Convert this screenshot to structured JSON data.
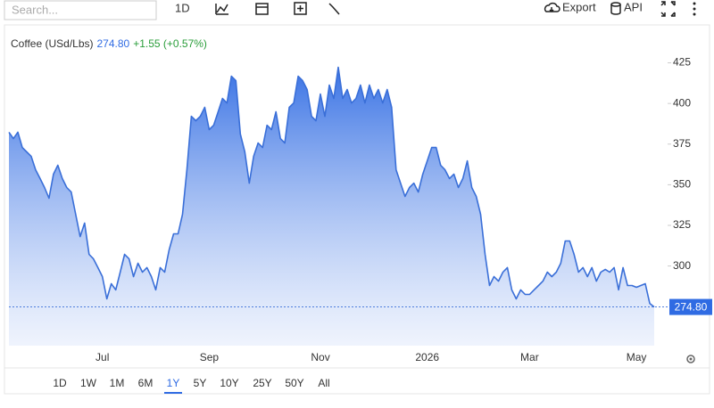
{
  "toolbar": {
    "search_placeholder": "Search...",
    "interval": "1D",
    "export": "Export",
    "api": "API"
  },
  "header": {
    "name": "Coffee (USd/Lbs)",
    "change": "+1.55 (+0.57%)"
  },
  "ranges": [
    "1D",
    "1W",
    "1M",
    "6M",
    "1Y",
    "5Y",
    "10Y",
    "25Y",
    "50Y",
    "All"
  ],
  "active_range": 4,
  "chart_data": {
    "type": "area",
    "color": "#3a6fd8",
    "categories": [
      null,
      null,
      null,
      null,
      null,
      null,
      null,
      null,
      null,
      null,
      null,
      null,
      null,
      null,
      null,
      null,
      null,
      null,
      null,
      null,
      null,
      "Jul",
      null,
      null,
      null,
      null,
      null,
      null,
      null,
      null,
      null,
      null,
      null,
      null,
      null,
      null,
      null,
      null,
      null,
      null,
      null,
      null,
      null,
      null,
      null,
      "Sep",
      null,
      null,
      null,
      null,
      null,
      null,
      null,
      null,
      null,
      null,
      null,
      null,
      null,
      null,
      null,
      null,
      null,
      null,
      null,
      null,
      null,
      null,
      null,
      null,
      "Nov",
      null,
      null,
      null,
      null,
      null,
      null,
      null,
      null,
      null,
      null,
      null,
      null,
      null,
      null,
      null,
      null,
      null,
      null,
      null,
      null,
      null,
      null,
      null,
      "2026",
      null,
      null,
      null,
      null,
      null,
      null,
      null,
      null,
      null,
      null,
      null,
      null,
      null,
      null,
      null,
      null,
      null,
      null,
      null,
      null,
      null,
      null,
      "Mar",
      null,
      null,
      null,
      null,
      null,
      null,
      null,
      null,
      null,
      null,
      null,
      null,
      null,
      null,
      null,
      null,
      null,
      null,
      null,
      null,
      null,
      null,
      null,
      "May",
      null,
      null,
      null,
      null
    ],
    "values": [
      382.3,
      378.4,
      382.3,
      372.9,
      370.2,
      367.5,
      359.2,
      353.8,
      348.3,
      341.7,
      356.5,
      362,
      353.8,
      348.3,
      345.5,
      331.8,
      318.1,
      326.4,
      307.2,
      304.4,
      299,
      293.5,
      279.8,
      289.1,
      285.3,
      296.2,
      307.2,
      304.4,
      293.5,
      301.7,
      296.2,
      299,
      293.5,
      285.3,
      299,
      296.2,
      309.9,
      319.8,
      319.8,
      331.8,
      359.2,
      392.1,
      389.4,
      392.1,
      397.6,
      383.9,
      386.6,
      394.9,
      403.1,
      400.3,
      416.8,
      414,
      381.2,
      370.2,
      351,
      367.5,
      375.7,
      372.9,
      386.6,
      383.9,
      394.9,
      378.4,
      375.7,
      397.6,
      400.3,
      416.8,
      414,
      408.6,
      392.1,
      389.4,
      405.8,
      392.1,
      411.3,
      403.1,
      422.3,
      403.1,
      408.6,
      400.3,
      403.1,
      411.3,
      400.3,
      411.3,
      403.1,
      408.6,
      400.3,
      408.6,
      397.6,
      359.2,
      351,
      342.8,
      348.3,
      351,
      345.5,
      356.5,
      364.7,
      372.9,
      372.9,
      362,
      359.2,
      353.8,
      356.5,
      348.3,
      353.8,
      364.7,
      348.3,
      342.8,
      331.8,
      307.2,
      288,
      293.5,
      290.7,
      296.2,
      299,
      285.3,
      279.8,
      285.3,
      282.5,
      282.5,
      285.3,
      288,
      290.7,
      296.2,
      293.5,
      296.2,
      301.7,
      315.4,
      315.4,
      307.2,
      296.2,
      299,
      293.5,
      299,
      290.7,
      296.2,
      297.9,
      296.2,
      299,
      285.3,
      299,
      288,
      288,
      286.9,
      288,
      289.1,
      277,
      274.8
    ],
    "last": {
      "value": 274.8,
      "label": "274.80"
    },
    "ylim": [
      251,
      439
    ],
    "yticks": [
      300,
      325,
      350,
      375,
      400,
      425
    ],
    "grid": false
  }
}
